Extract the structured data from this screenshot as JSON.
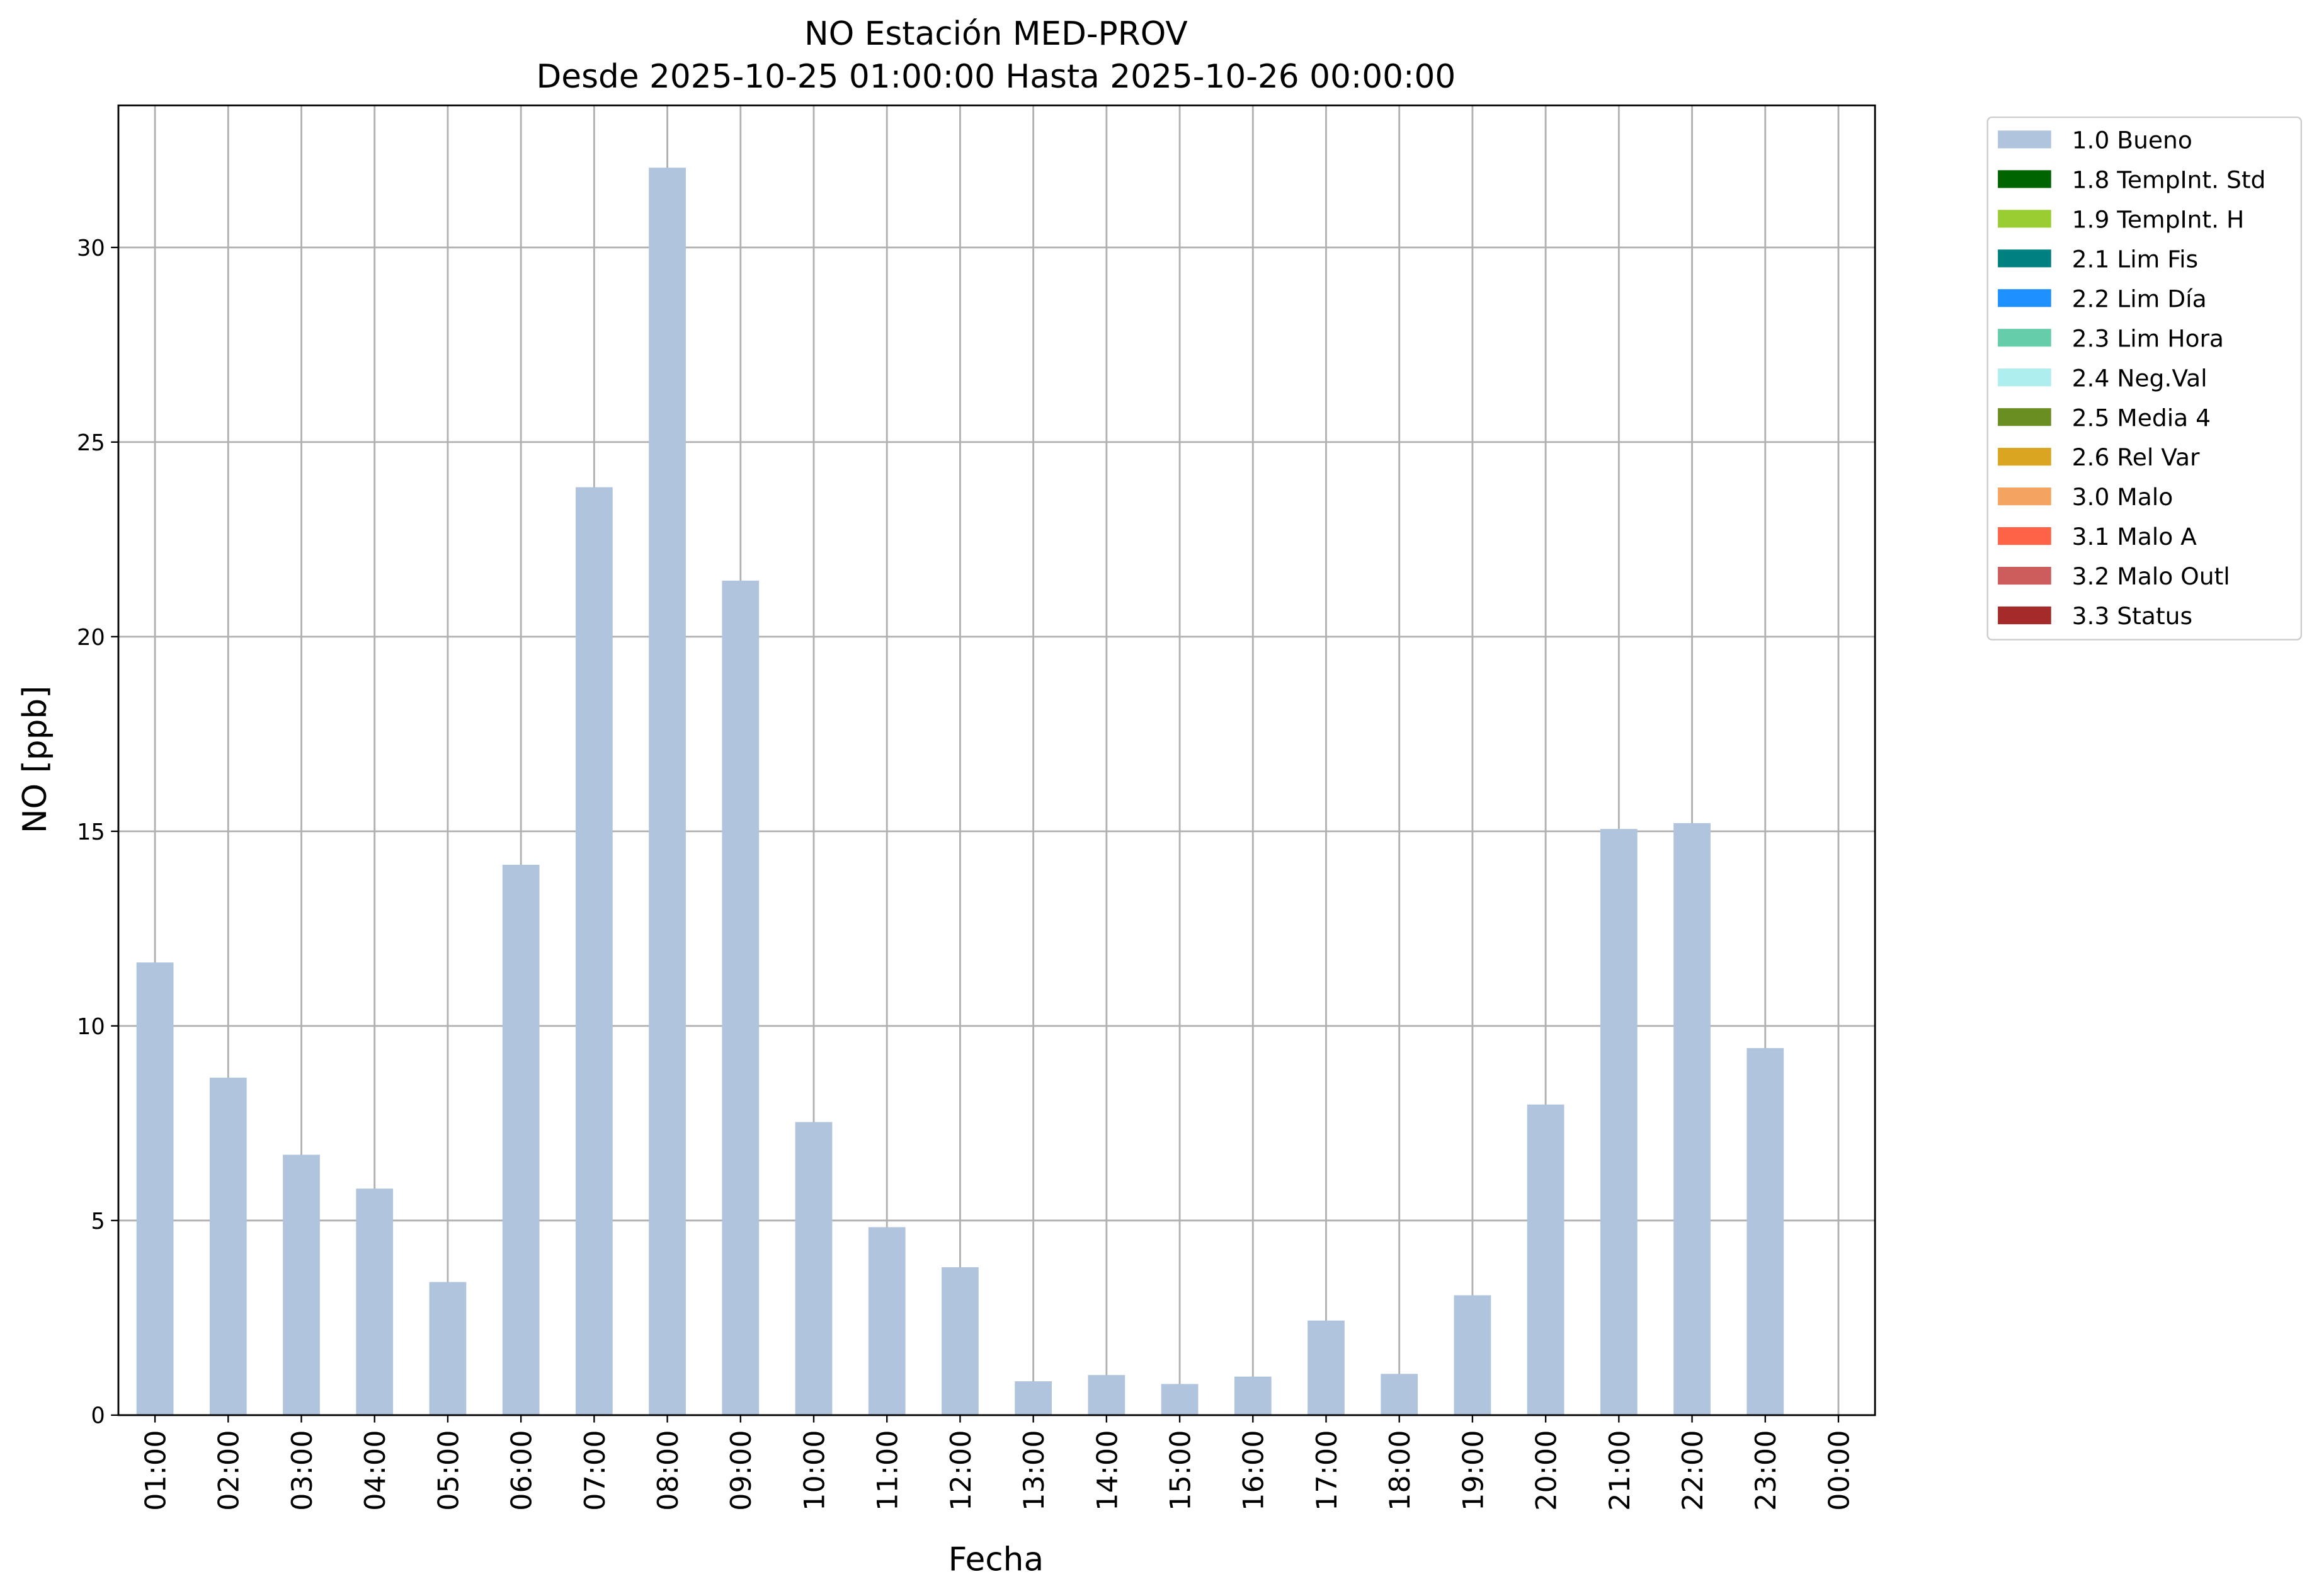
{
  "chart_data": {
    "type": "bar",
    "title": "NO Estación MED-PROV",
    "subtitle": "Desde 2025-10-25 01:00:00 Hasta 2025-10-26 00:00:00",
    "x_label": "Fecha",
    "y_label": "NO [ppb]",
    "categories": [
      "01:00",
      "02:00",
      "03:00",
      "04:00",
      "05:00",
      "06:00",
      "07:00",
      "08:00",
      "09:00",
      "10:00",
      "11:00",
      "12:00",
      "13:00",
      "14:00",
      "15:00",
      "16:00",
      "17:00",
      "18:00",
      "19:00",
      "20:00",
      "21:00",
      "22:00",
      "23:00",
      "00:00"
    ],
    "series": [
      {
        "name": "1.0 Bueno",
        "color": "#b0c4de",
        "values": [
          11.63,
          8.67,
          6.69,
          5.82,
          3.42,
          14.14,
          23.84,
          32.05,
          21.44,
          7.53,
          4.83,
          3.8,
          0.87,
          1.03,
          0.8,
          0.99,
          2.43,
          1.06,
          3.08,
          7.98,
          15.06,
          15.21,
          9.43,
          null
        ]
      },
      {
        "name": "1.8 TempInt. Std",
        "color": "#006400"
      },
      {
        "name": "1.9 TempInt. H",
        "color": "#9acd32"
      },
      {
        "name": "2.1 Lim Fis",
        "color": "#008080"
      },
      {
        "name": "2.2 Lim Día",
        "color": "#1e90ff"
      },
      {
        "name": "2.3 Lim Hora",
        "color": "#66cdaa"
      },
      {
        "name": "2.4 Neg.Val",
        "color": "#afeeee"
      },
      {
        "name": "2.5 Media 4",
        "color": "#6b8e23"
      },
      {
        "name": "2.6 Rel Var",
        "color": "#daa520"
      },
      {
        "name": "3.0 Malo",
        "color": "#f4a460"
      },
      {
        "name": "3.1 Malo A",
        "color": "#ff6347"
      },
      {
        "name": "3.2 Malo Outl",
        "color": "#cd5c5c"
      },
      {
        "name": "3.3 Status",
        "color": "#a52a2a"
      }
    ],
    "ylim": [
      0,
      33.65
    ],
    "yticks": [
      0,
      5,
      10,
      15,
      20,
      25,
      30
    ],
    "grid": true,
    "legend": "outside-upper-right"
  }
}
